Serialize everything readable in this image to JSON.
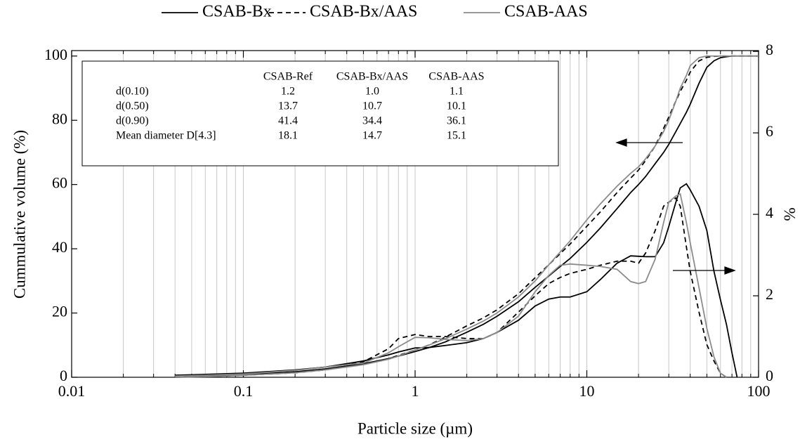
{
  "chart_data": {
    "type": "line",
    "x_label": "Particle size (µm)",
    "y_label": "Cummulative volume (%)",
    "y2_label": "%",
    "xlim": [
      0.01,
      100
    ],
    "xscale": "log",
    "xticks": [
      0.01,
      0.1,
      1,
      10,
      100
    ],
    "ylim": [
      0,
      101.7
    ],
    "yticks": [
      0,
      20,
      40,
      60,
      80,
      100
    ],
    "y2lim": [
      0,
      8.02
    ],
    "y2ticks": [
      0,
      2,
      4,
      6,
      8
    ],
    "grid": "x-minor",
    "legend": "top",
    "x": [
      0.04,
      0.06,
      0.1,
      0.2,
      0.3,
      0.5,
      0.7,
      0.8,
      1,
      1.2,
      1.5,
      2,
      2.5,
      3,
      4,
      5,
      6,
      7,
      8,
      10,
      12,
      15,
      18,
      20,
      22,
      25,
      28,
      30,
      33,
      35,
      38,
      40,
      45,
      50,
      55,
      60,
      65,
      70,
      75,
      80,
      90,
      100
    ],
    "series": [
      {
        "name": "CSAB-Bx",
        "color": "#000000",
        "dash": "solid",
        "values": [
          0,
          0.3,
          0.8,
          1.7,
          2.6,
          4.2,
          5.8,
          6.6,
          8,
          9.2,
          11,
          14,
          16.5,
          19,
          23.5,
          28,
          31.5,
          34.5,
          37,
          42,
          46.5,
          52.5,
          57.5,
          60,
          62.5,
          66.5,
          70,
          72.5,
          76.5,
          79,
          82.5,
          85,
          91.5,
          96.5,
          98.5,
          99.5,
          99.8,
          100,
          100,
          100,
          100,
          100
        ],
        "y2_values": [
          0.05,
          0.07,
          0.1,
          0.18,
          0.25,
          0.4,
          0.55,
          0.62,
          0.72,
          0.73,
          0.78,
          0.85,
          0.95,
          1.1,
          1.4,
          1.75,
          1.92,
          1.97,
          1.97,
          2.1,
          2.4,
          2.8,
          2.98,
          2.97,
          2.96,
          2.96,
          3.3,
          3.7,
          4.3,
          4.65,
          4.75,
          4.6,
          4.2,
          3.6,
          2.6,
          1.9,
          1.3,
          0.6,
          0,
          null,
          null,
          null
        ]
      },
      {
        "name": "CSAB-Bx/AAS",
        "color": "#000000",
        "dash": "dashed",
        "values": [
          0,
          0.2,
          0.6,
          1.4,
          2.3,
          4.0,
          5.8,
          6.8,
          8.5,
          10,
          12.5,
          16,
          18.5,
          21,
          26,
          31,
          35,
          38.5,
          41.5,
          47,
          51.5,
          57.5,
          62,
          64.5,
          67.5,
          72,
          77.5,
          81,
          86,
          89,
          92.5,
          95,
          98.5,
          99.6,
          99.9,
          100,
          100,
          100,
          100,
          100,
          100,
          100
        ],
        "y2_values": [
          0.02,
          0.04,
          0.08,
          0.17,
          0.25,
          0.38,
          0.7,
          0.95,
          1.05,
          1.0,
          1.0,
          0.95,
          0.95,
          1.1,
          1.6,
          2.0,
          2.3,
          2.45,
          2.55,
          2.65,
          2.75,
          2.85,
          2.85,
          2.8,
          3.05,
          3.6,
          4.2,
          4.3,
          4.4,
          4.2,
          3.2,
          2.6,
          1.6,
          0.8,
          0.4,
          0.1,
          0,
          null,
          null,
          null,
          null,
          null
        ]
      },
      {
        "name": "CSAB-AAS",
        "color": "#8c8c8c",
        "dash": "solid",
        "values": [
          0,
          0.2,
          0.6,
          1.4,
          2.3,
          3.9,
          5.6,
          6.6,
          8.5,
          10,
          12,
          15,
          17.5,
          20,
          25,
          30,
          35,
          39,
          42.5,
          49,
          54,
          59.5,
          63.5,
          65.5,
          68,
          72,
          76.5,
          80,
          86,
          90,
          94,
          97,
          99.5,
          100,
          100,
          100,
          100,
          100,
          100,
          100,
          100,
          100
        ],
        "y2_values": [
          0.03,
          0.05,
          0.08,
          0.17,
          0.25,
          0.35,
          0.6,
          0.75,
          0.98,
          0.97,
          0.93,
          0.9,
          0.95,
          1.1,
          1.5,
          2.1,
          2.5,
          2.75,
          2.78,
          2.75,
          2.72,
          2.65,
          2.35,
          2.3,
          2.35,
          2.9,
          3.8,
          4.3,
          4.45,
          4.5,
          3.8,
          3.3,
          2.2,
          1.2,
          0.5,
          0.1,
          0,
          null,
          null,
          null,
          null,
          null
        ]
      }
    ],
    "table": {
      "columns": [
        "CSAB-Ref",
        "CSAB-Bx/AAS",
        "CSAB-AAS"
      ],
      "rows": [
        [
          "d(0.10)",
          "1.2",
          "1.0",
          "1.1"
        ],
        [
          "d(0.50)",
          "13.7",
          "10.7",
          "10.1"
        ],
        [
          "d(0.90)",
          "41.4",
          "34.4",
          "36.1"
        ],
        [
          "Mean diameter D[4.3]",
          "18.1",
          "14.7",
          "15.1"
        ]
      ]
    }
  }
}
